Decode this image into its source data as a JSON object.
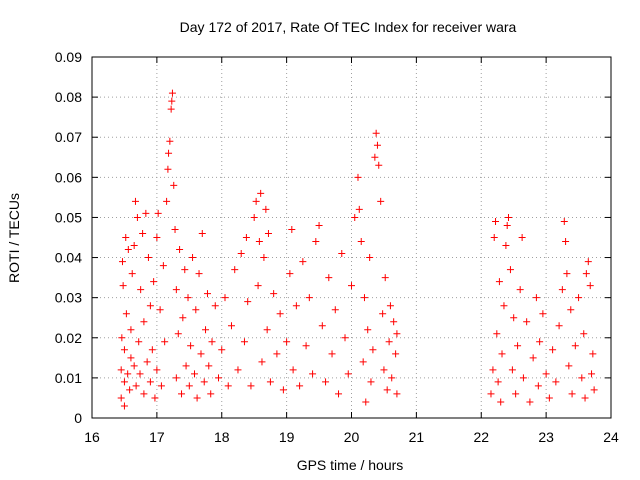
{
  "chart_data": {
    "type": "scatter",
    "title": "Day 172 of 2017, Rate Of TEC Index for receiver wara",
    "xlabel": "GPS time / hours",
    "ylabel": "ROTI / TECUs",
    "xlim": [
      16,
      24
    ],
    "ylim": [
      0,
      0.09
    ],
    "xticks": [
      16,
      17,
      18,
      19,
      20,
      21,
      22,
      23,
      24
    ],
    "yticks": [
      0,
      0.01,
      0.02,
      0.03,
      0.04,
      0.05,
      0.06,
      0.07,
      0.08,
      0.09
    ],
    "xtick_labels": [
      "16",
      "17",
      "18",
      "19",
      "20",
      "21",
      "22",
      "23",
      "24"
    ],
    "ytick_labels": [
      "0",
      "0.01",
      "0.02",
      "0.03",
      "0.04",
      "0.05",
      "0.06",
      "0.07",
      "0.08",
      "0.09"
    ],
    "grid": true,
    "marker": "+",
    "color": "#ff0000",
    "series": [
      {
        "name": "ROTI",
        "points": [
          [
            16.45,
            0.005
          ],
          [
            16.45,
            0.012
          ],
          [
            16.46,
            0.02
          ],
          [
            16.47,
            0.039
          ],
          [
            16.48,
            0.033
          ],
          [
            16.5,
            0.003
          ],
          [
            16.5,
            0.009
          ],
          [
            16.5,
            0.017
          ],
          [
            16.52,
            0.045
          ],
          [
            16.53,
            0.026
          ],
          [
            16.55,
            0.011
          ],
          [
            16.56,
            0.042
          ],
          [
            16.58,
            0.007
          ],
          [
            16.6,
            0.015
          ],
          [
            16.6,
            0.022
          ],
          [
            16.62,
            0.036
          ],
          [
            16.65,
            0.013
          ],
          [
            16.65,
            0.043
          ],
          [
            16.67,
            0.054
          ],
          [
            16.68,
            0.008
          ],
          [
            16.7,
            0.05
          ],
          [
            16.72,
            0.019
          ],
          [
            16.74,
            0.011
          ],
          [
            16.75,
            0.032
          ],
          [
            16.78,
            0.046
          ],
          [
            16.8,
            0.006
          ],
          [
            16.8,
            0.024
          ],
          [
            16.83,
            0.051
          ],
          [
            16.85,
            0.014
          ],
          [
            16.87,
            0.04
          ],
          [
            16.9,
            0.009
          ],
          [
            16.9,
            0.028
          ],
          [
            16.93,
            0.017
          ],
          [
            16.95,
            0.034
          ],
          [
            16.97,
            0.005
          ],
          [
            17.0,
            0.012
          ],
          [
            17.0,
            0.045
          ],
          [
            17.02,
            0.051
          ],
          [
            17.05,
            0.027
          ],
          [
            17.07,
            0.008
          ],
          [
            17.1,
            0.038
          ],
          [
            17.12,
            0.019
          ],
          [
            17.15,
            0.054
          ],
          [
            17.17,
            0.062
          ],
          [
            17.18,
            0.066
          ],
          [
            17.2,
            0.069
          ],
          [
            17.22,
            0.077
          ],
          [
            17.23,
            0.079
          ],
          [
            17.24,
            0.081
          ],
          [
            17.26,
            0.058
          ],
          [
            17.28,
            0.047
          ],
          [
            17.3,
            0.01
          ],
          [
            17.3,
            0.032
          ],
          [
            17.33,
            0.021
          ],
          [
            17.35,
            0.042
          ],
          [
            17.38,
            0.006
          ],
          [
            17.4,
            0.025
          ],
          [
            17.43,
            0.037
          ],
          [
            17.45,
            0.013
          ],
          [
            17.48,
            0.03
          ],
          [
            17.5,
            0.008
          ],
          [
            17.52,
            0.018
          ],
          [
            17.55,
            0.04
          ],
          [
            17.58,
            0.011
          ],
          [
            17.6,
            0.027
          ],
          [
            17.62,
            0.005
          ],
          [
            17.65,
            0.036
          ],
          [
            17.68,
            0.016
          ],
          [
            17.7,
            0.046
          ],
          [
            17.73,
            0.009
          ],
          [
            17.75,
            0.022
          ],
          [
            17.78,
            0.031
          ],
          [
            17.8,
            0.013
          ],
          [
            17.83,
            0.006
          ],
          [
            17.85,
            0.019
          ],
          [
            17.9,
            0.028
          ],
          [
            17.95,
            0.01
          ],
          [
            18.0,
            0.017
          ],
          [
            18.05,
            0.03
          ],
          [
            18.1,
            0.008
          ],
          [
            18.15,
            0.023
          ],
          [
            18.2,
            0.037
          ],
          [
            18.25,
            0.012
          ],
          [
            18.3,
            0.041
          ],
          [
            18.35,
            0.019
          ],
          [
            18.38,
            0.045
          ],
          [
            18.4,
            0.029
          ],
          [
            18.45,
            0.008
          ],
          [
            18.5,
            0.05
          ],
          [
            18.53,
            0.054
          ],
          [
            18.56,
            0.033
          ],
          [
            18.58,
            0.044
          ],
          [
            18.6,
            0.056
          ],
          [
            18.62,
            0.014
          ],
          [
            18.65,
            0.04
          ],
          [
            18.68,
            0.052
          ],
          [
            18.7,
            0.022
          ],
          [
            18.72,
            0.046
          ],
          [
            18.75,
            0.009
          ],
          [
            18.8,
            0.031
          ],
          [
            18.85,
            0.016
          ],
          [
            18.9,
            0.026
          ],
          [
            18.95,
            0.007
          ],
          [
            19.0,
            0.019
          ],
          [
            19.05,
            0.036
          ],
          [
            19.08,
            0.047
          ],
          [
            19.1,
            0.012
          ],
          [
            19.15,
            0.028
          ],
          [
            19.2,
            0.008
          ],
          [
            19.25,
            0.039
          ],
          [
            19.3,
            0.018
          ],
          [
            19.35,
            0.03
          ],
          [
            19.4,
            0.011
          ],
          [
            19.45,
            0.044
          ],
          [
            19.5,
            0.048
          ],
          [
            19.55,
            0.023
          ],
          [
            19.6,
            0.009
          ],
          [
            19.65,
            0.035
          ],
          [
            19.7,
            0.016
          ],
          [
            19.75,
            0.027
          ],
          [
            19.8,
            0.006
          ],
          [
            19.85,
            0.041
          ],
          [
            19.9,
            0.02
          ],
          [
            19.95,
            0.011
          ],
          [
            20.0,
            0.033
          ],
          [
            20.05,
            0.05
          ],
          [
            20.1,
            0.06
          ],
          [
            20.12,
            0.052
          ],
          [
            20.15,
            0.044
          ],
          [
            20.18,
            0.014
          ],
          [
            20.2,
            0.03
          ],
          [
            20.22,
            0.004
          ],
          [
            20.25,
            0.022
          ],
          [
            20.28,
            0.04
          ],
          [
            20.3,
            0.009
          ],
          [
            20.33,
            0.017
          ],
          [
            20.36,
            0.065
          ],
          [
            20.38,
            0.071
          ],
          [
            20.4,
            0.068
          ],
          [
            20.42,
            0.063
          ],
          [
            20.45,
            0.054
          ],
          [
            20.48,
            0.026
          ],
          [
            20.5,
            0.012
          ],
          [
            20.52,
            0.035
          ],
          [
            20.55,
            0.007
          ],
          [
            20.58,
            0.019
          ],
          [
            20.6,
            0.028
          ],
          [
            20.62,
            0.01
          ],
          [
            20.65,
            0.024
          ],
          [
            20.68,
            0.016
          ],
          [
            20.7,
            0.006
          ],
          [
            20.7,
            0.021
          ],
          [
            22.15,
            0.006
          ],
          [
            22.18,
            0.012
          ],
          [
            22.2,
            0.045
          ],
          [
            22.22,
            0.049
          ],
          [
            22.24,
            0.021
          ],
          [
            22.26,
            0.009
          ],
          [
            22.28,
            0.034
          ],
          [
            22.3,
            0.004
          ],
          [
            22.32,
            0.016
          ],
          [
            22.35,
            0.028
          ],
          [
            22.38,
            0.043
          ],
          [
            22.4,
            0.048
          ],
          [
            22.42,
            0.05
          ],
          [
            22.45,
            0.037
          ],
          [
            22.48,
            0.012
          ],
          [
            22.5,
            0.025
          ],
          [
            22.53,
            0.006
          ],
          [
            22.56,
            0.018
          ],
          [
            22.6,
            0.032
          ],
          [
            22.63,
            0.045
          ],
          [
            22.65,
            0.01
          ],
          [
            22.7,
            0.024
          ],
          [
            22.75,
            0.004
          ],
          [
            22.8,
            0.015
          ],
          [
            22.85,
            0.03
          ],
          [
            22.88,
            0.008
          ],
          [
            22.9,
            0.019
          ],
          [
            22.95,
            0.026
          ],
          [
            23.0,
            0.011
          ],
          [
            23.05,
            0.005
          ],
          [
            23.1,
            0.017
          ],
          [
            23.15,
            0.009
          ],
          [
            23.2,
            0.023
          ],
          [
            23.25,
            0.032
          ],
          [
            23.28,
            0.049
          ],
          [
            23.3,
            0.044
          ],
          [
            23.32,
            0.036
          ],
          [
            23.35,
            0.013
          ],
          [
            23.38,
            0.027
          ],
          [
            23.4,
            0.006
          ],
          [
            23.45,
            0.018
          ],
          [
            23.5,
            0.03
          ],
          [
            23.55,
            0.01
          ],
          [
            23.58,
            0.021
          ],
          [
            23.6,
            0.005
          ],
          [
            23.62,
            0.036
          ],
          [
            23.65,
            0.039
          ],
          [
            23.68,
            0.033
          ],
          [
            23.7,
            0.011
          ],
          [
            23.72,
            0.016
          ],
          [
            23.74,
            0.007
          ]
        ]
      }
    ]
  }
}
